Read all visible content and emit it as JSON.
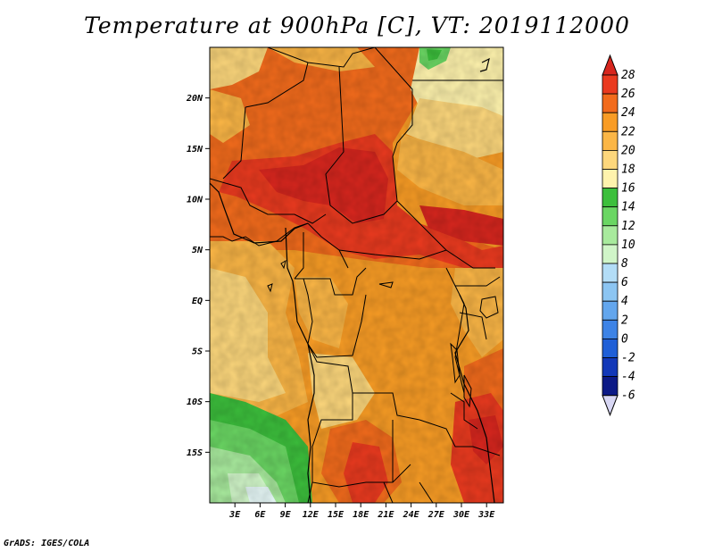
{
  "title": "Temperature at 900hPa [C], VT: 2019112000",
  "credit": "GrADS: IGES/COLA",
  "map": {
    "lon_range": [
      0,
      35
    ],
    "lat_range": [
      -20,
      25
    ],
    "lon_ticks": [
      {
        "value": 3,
        "label": "3E"
      },
      {
        "value": 6,
        "label": "6E"
      },
      {
        "value": 9,
        "label": "9E"
      },
      {
        "value": 12,
        "label": "12E"
      },
      {
        "value": 15,
        "label": "15E"
      },
      {
        "value": 18,
        "label": "18E"
      },
      {
        "value": 21,
        "label": "21E"
      },
      {
        "value": 24,
        "label": "24E"
      },
      {
        "value": 27,
        "label": "27E"
      },
      {
        "value": 30,
        "label": "30E"
      },
      {
        "value": 33,
        "label": "33E"
      }
    ],
    "lat_ticks": [
      {
        "value": 20,
        "label": "20N"
      },
      {
        "value": 15,
        "label": "15N"
      },
      {
        "value": 10,
        "label": "10N"
      },
      {
        "value": 5,
        "label": "5N"
      },
      {
        "value": 0,
        "label": "EQ"
      },
      {
        "value": -5,
        "label": "5S"
      },
      {
        "value": -10,
        "label": "10S"
      },
      {
        "value": -15,
        "label": "15S"
      }
    ]
  },
  "colorbar": {
    "levels": [
      "28",
      "26",
      "24",
      "22",
      "20",
      "18",
      "16",
      "14",
      "12",
      "10",
      "8",
      "6",
      "4",
      "2",
      "0",
      "-2",
      "-4",
      "-6"
    ],
    "colors": [
      "#d7261e",
      "#ea3a1f",
      "#f26b1c",
      "#f89c25",
      "#fbb646",
      "#fdd77c",
      "#fff3ad",
      "#3cbf3c",
      "#6ad663",
      "#a8ea9d",
      "#d0f5c8",
      "#b3ddf7",
      "#8cc5f2",
      "#63a6ed",
      "#3d83e6",
      "#1f5fd7",
      "#1238b8",
      "#0c1a86",
      "#d8d7f4"
    ]
  }
}
